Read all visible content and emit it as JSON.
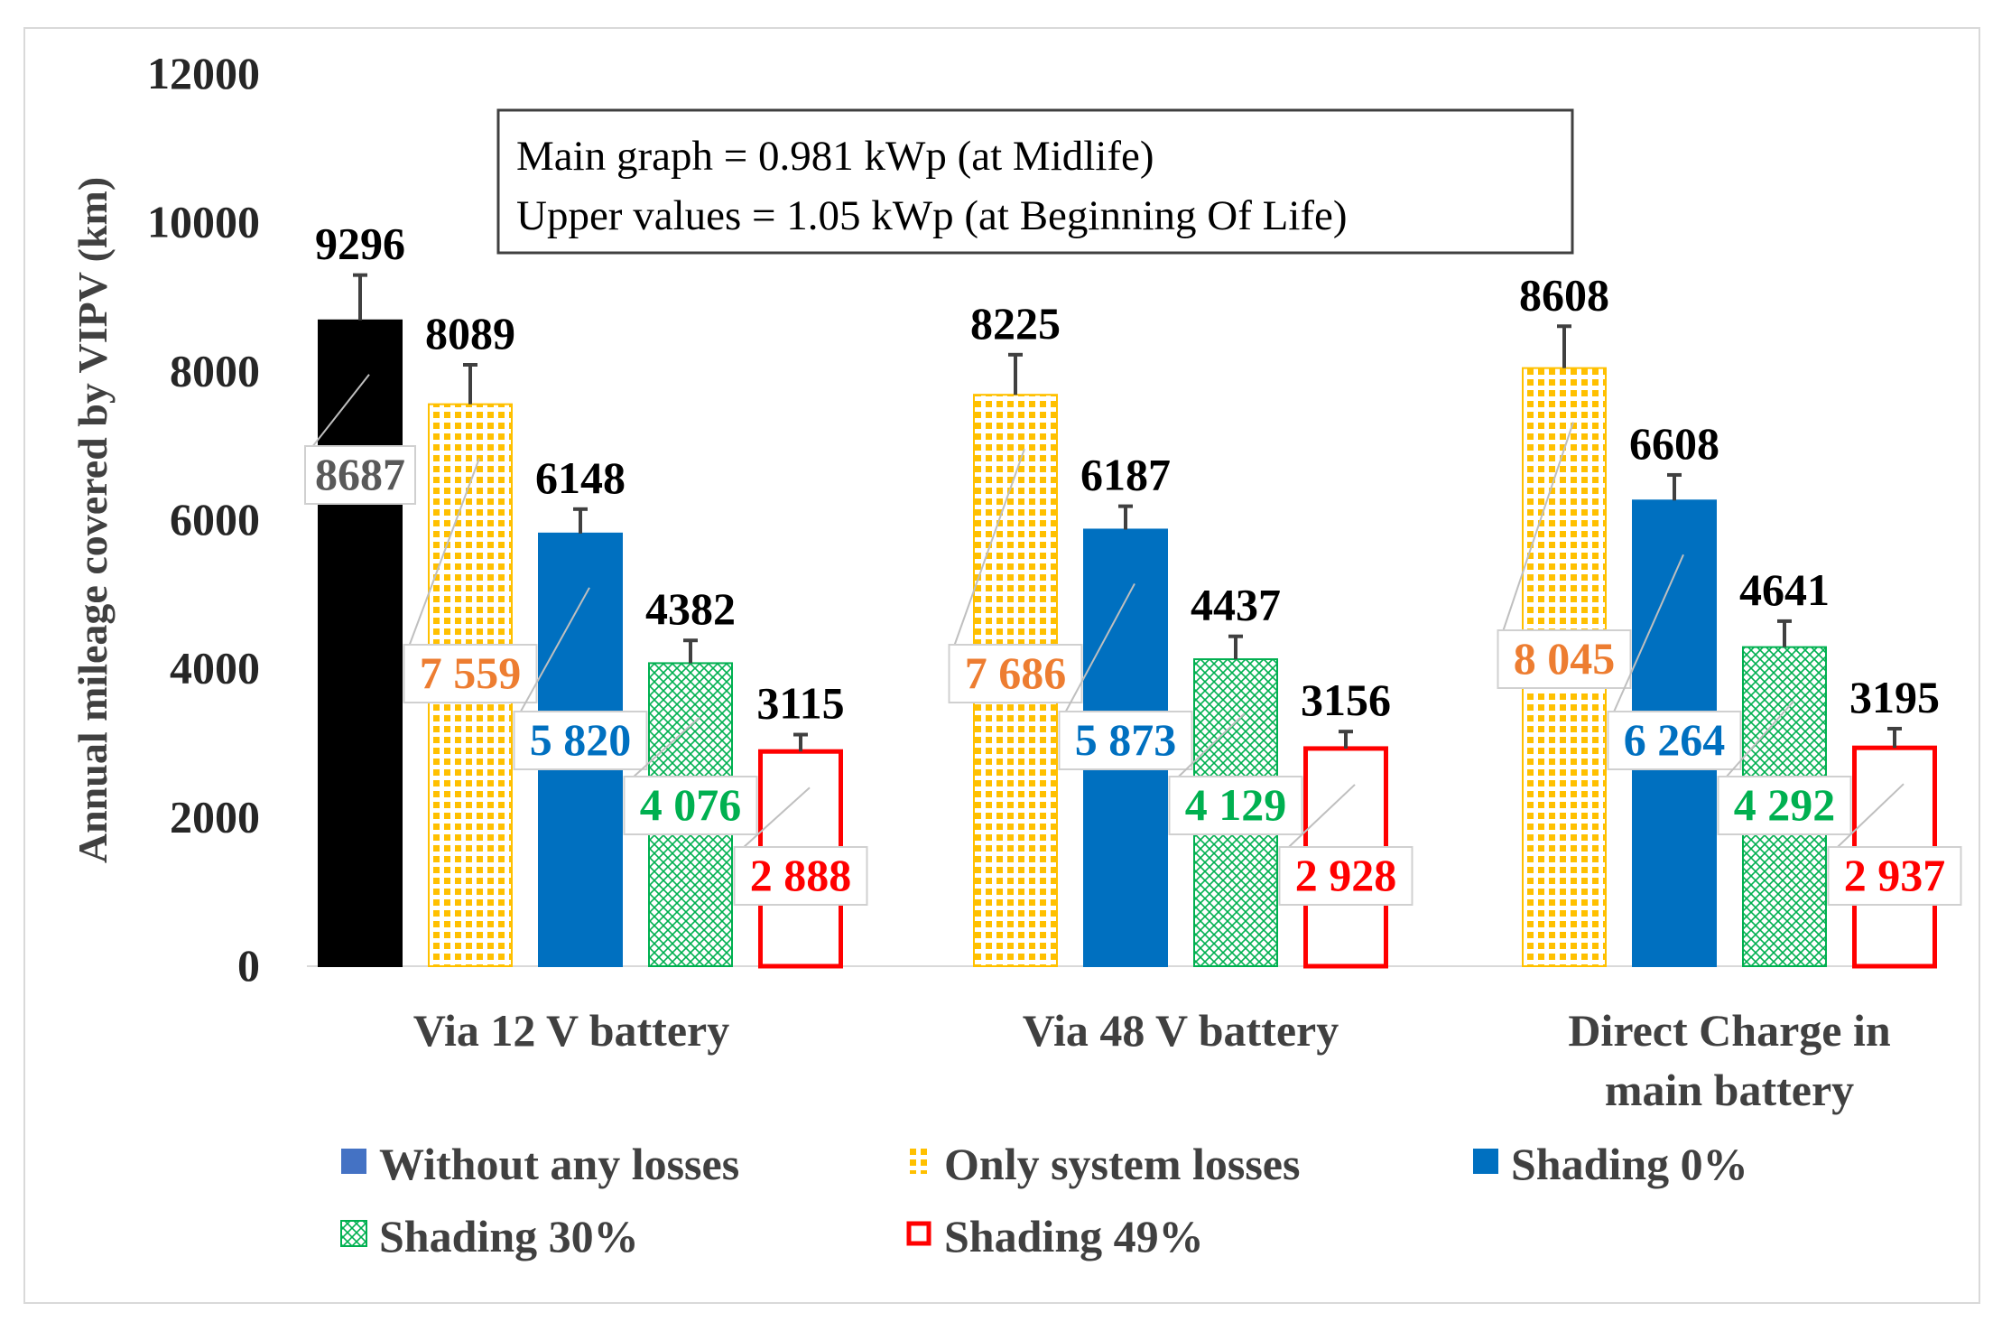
{
  "chart_data": {
    "type": "bar",
    "ylabel": "Annual mileage covered by VIPV (km)",
    "ylim": [
      0,
      12000
    ],
    "yticks": [
      "0",
      "2000",
      "4000",
      "6000",
      "8000",
      "10000",
      "12000"
    ],
    "categories": [
      {
        "lines": [
          "Via 12 V battery"
        ]
      },
      {
        "lines": [
          "Via 48 V battery"
        ]
      },
      {
        "lines": [
          "Direct Charge in",
          "main battery"
        ]
      }
    ],
    "annotation": {
      "line1": "Main graph = 0.981 kWp (at Midlife)",
      "line2": "Upper values = 1.05 kWp (at Beginning Of Life)"
    },
    "series": [
      {
        "name": "Without any losses",
        "fill": "#000000",
        "stroke": "#000000",
        "label_color": "#595959",
        "legend_color": "#4472c4",
        "pattern": "none",
        "values": [
          8687,
          null,
          null
        ],
        "upper": [
          9296,
          null,
          null
        ],
        "value_labels": [
          "8687",
          "",
          ""
        ],
        "upper_labels": [
          "9296",
          "",
          ""
        ]
      },
      {
        "name": "Only system losses",
        "fill": "#ffc000",
        "stroke": "#ffc000",
        "label_color": "#ed7d31",
        "legend_color": "#ffc000",
        "pattern": "grid",
        "values": [
          7559,
          7686,
          8045
        ],
        "upper": [
          8089,
          8225,
          8608
        ],
        "value_labels": [
          "7 559",
          "7 686",
          "8 045"
        ],
        "upper_labels": [
          "8089",
          "8225",
          "8608"
        ]
      },
      {
        "name": "Shading 0%",
        "fill": "#0070c0",
        "stroke": "#0070c0",
        "label_color": "#0070c0",
        "legend_color": "#0070c0",
        "pattern": "none",
        "values": [
          5820,
          5873,
          6264
        ],
        "upper": [
          6148,
          6187,
          6608
        ],
        "value_labels": [
          "5 820",
          "5 873",
          "6 264"
        ],
        "upper_labels": [
          "6148",
          "6187",
          "6608"
        ]
      },
      {
        "name": "Shading 30%",
        "fill": "#00b050",
        "stroke": "#00b050",
        "label_color": "#00b050",
        "legend_color": "#00b050",
        "pattern": "cross",
        "values": [
          4076,
          4129,
          4292
        ],
        "upper": [
          4382,
          4437,
          4641
        ],
        "value_labels": [
          "4 076",
          "4 129",
          "4 292"
        ],
        "upper_labels": [
          "4382",
          "4437",
          "4641"
        ]
      },
      {
        "name": "Shading 49%",
        "fill": "#ffffff",
        "stroke": "#ff0000",
        "label_color": "#ff0000",
        "legend_color": "#ff0000",
        "pattern": "outline",
        "values": [
          2888,
          2928,
          2937
        ],
        "upper": [
          3115,
          3156,
          3195
        ],
        "value_labels": [
          "2 888",
          "2 928",
          "2 937"
        ],
        "upper_labels": [
          "3115",
          "3156",
          "3195"
        ]
      }
    ],
    "legend_position": "bottom",
    "grid": false
  }
}
